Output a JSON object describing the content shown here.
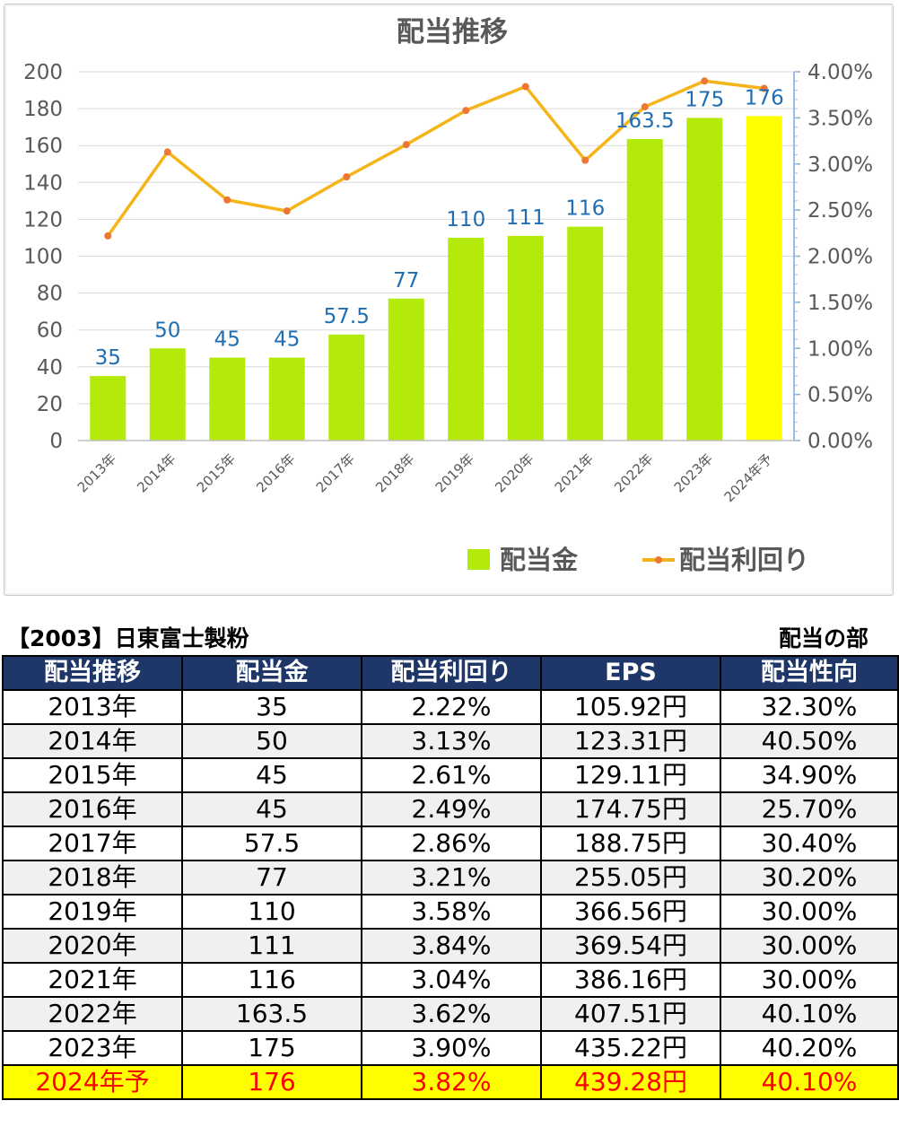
{
  "chart_data": {
    "type": "bar",
    "title": "配当推移",
    "categories": [
      "2013年",
      "2014年",
      "2015年",
      "2016年",
      "2017年",
      "2018年",
      "2019年",
      "2020年",
      "2021年",
      "2022年",
      "2023年",
      "2024年予"
    ],
    "series": [
      {
        "name": "配当金",
        "type": "bar",
        "axis": "left",
        "values": [
          35,
          50,
          45,
          45,
          57.5,
          77,
          110,
          111,
          116,
          163.5,
          175,
          176
        ],
        "labels": [
          "35",
          "50",
          "45",
          "45",
          "57.5",
          "77",
          "110",
          "111",
          "116",
          "163.5",
          "175",
          "176"
        ]
      },
      {
        "name": "配当利回り",
        "type": "line",
        "axis": "right",
        "values": [
          2.22,
          3.13,
          2.61,
          2.49,
          2.86,
          3.21,
          3.58,
          3.84,
          3.04,
          3.62,
          3.9,
          3.82
        ]
      }
    ],
    "ylim": [
      0,
      200
    ],
    "yticks": [
      "0",
      "20",
      "40",
      "60",
      "80",
      "100",
      "120",
      "140",
      "160",
      "180",
      "200"
    ],
    "y2lim": [
      0,
      4
    ],
    "y2ticks": [
      "0.00%",
      "0.50%",
      "1.00%",
      "1.50%",
      "2.00%",
      "2.50%",
      "3.00%",
      "3.50%",
      "4.00%"
    ],
    "legend_position": "bottom-right",
    "gridlines": true,
    "colors": {
      "bar": "#b3ea0c",
      "bar_forecast": "#ffff00",
      "line": "#f5b417",
      "marker": "#ee7733",
      "label": "#1f6eb4",
      "axis_text": "#595959"
    }
  },
  "table": {
    "company": "【2003】日東富士製粉",
    "section": "配当の部",
    "headers": [
      "配当推移",
      "配当金",
      "配当利回り",
      "EPS",
      "配当性向"
    ],
    "rows": [
      [
        "2013年",
        "35",
        "2.22%",
        "105.92円",
        "32.30%"
      ],
      [
        "2014年",
        "50",
        "3.13%",
        "123.31円",
        "40.50%"
      ],
      [
        "2015年",
        "45",
        "2.61%",
        "129.11円",
        "34.90%"
      ],
      [
        "2016年",
        "45",
        "2.49%",
        "174.75円",
        "25.70%"
      ],
      [
        "2017年",
        "57.5",
        "2.86%",
        "188.75円",
        "30.40%"
      ],
      [
        "2018年",
        "77",
        "3.21%",
        "255.05円",
        "30.20%"
      ],
      [
        "2019年",
        "110",
        "3.58%",
        "366.56円",
        "30.00%"
      ],
      [
        "2020年",
        "111",
        "3.84%",
        "369.54円",
        "30.00%"
      ],
      [
        "2021年",
        "116",
        "3.04%",
        "386.16円",
        "30.00%"
      ],
      [
        "2022年",
        "163.5",
        "3.62%",
        "407.51円",
        "40.10%"
      ],
      [
        "2023年",
        "175",
        "3.90%",
        "435.22円",
        "40.20%"
      ],
      [
        "2024年予",
        "176",
        "3.82%",
        "439.28円",
        "40.10%"
      ]
    ],
    "header_color": "#1f3668",
    "forecast_color": "#ffff00",
    "forecast_text_color": "#ff0000"
  }
}
